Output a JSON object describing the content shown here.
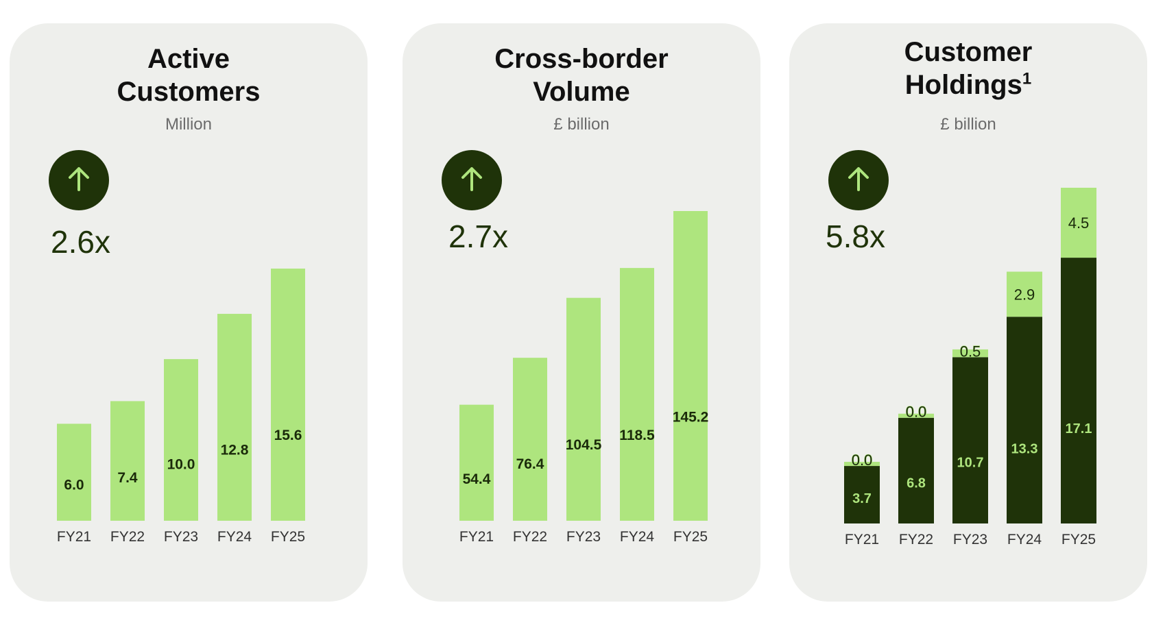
{
  "colors": {
    "card_bg": "#eeefec",
    "light_green": "#aee57e",
    "dark_green": "#1f3309",
    "arrow_green": "#aee57e",
    "title": "#111111",
    "unit": "#6b6b6b"
  },
  "icons": {
    "growth": "arrow-up-icon"
  },
  "cards": [
    {
      "title_line1": "Active",
      "title_line2": "Customers",
      "title_sup": "",
      "unit": "Million",
      "growth": "2.6x"
    },
    {
      "title_line1": "Cross-border",
      "title_line2": "Volume",
      "title_sup": "",
      "unit": "£ billion",
      "growth": "2.7x"
    },
    {
      "title_line1": "Customer",
      "title_line2": "Holdings",
      "title_sup": "1",
      "unit": "£ billion",
      "growth": "5.8x"
    }
  ],
  "chart_data": [
    {
      "type": "bar",
      "title": "Active Customers",
      "ylabel": "Million",
      "categories": [
        "FY21",
        "FY22",
        "FY23",
        "FY24",
        "FY25"
      ],
      "values": [
        6.0,
        7.4,
        10.0,
        12.8,
        15.6
      ],
      "labels": [
        "6.0",
        "7.4",
        "10.0",
        "12.8",
        "15.6"
      ],
      "ylim": [
        0,
        19.5
      ],
      "grid": false,
      "legend": "none"
    },
    {
      "type": "bar",
      "title": "Cross-border Volume",
      "ylabel": "£ billion",
      "categories": [
        "FY21",
        "FY22",
        "FY23",
        "FY24",
        "FY25"
      ],
      "values": [
        54.4,
        76.4,
        104.5,
        118.5,
        145.2
      ],
      "labels": [
        "54.4",
        "76.4",
        "104.5",
        "118.5",
        "145.2"
      ],
      "ylim": [
        0,
        145.2
      ],
      "grid": false,
      "legend": "none"
    },
    {
      "type": "bar",
      "stacked": true,
      "title": "Customer Holdings",
      "ylabel": "£ billion",
      "categories": [
        "FY21",
        "FY22",
        "FY23",
        "FY24",
        "FY25"
      ],
      "series": [
        {
          "values": [
            3.7,
            6.8,
            10.7,
            13.3,
            17.1
          ],
          "labels": [
            "3.7",
            "6.8",
            "10.7",
            "13.3",
            "17.1"
          ]
        },
        {
          "values": [
            0.0,
            0.0,
            0.5,
            2.9,
            4.5
          ],
          "labels": [
            "0.0",
            "0.0",
            "0.5",
            "2.9",
            "4.5"
          ]
        }
      ],
      "ylim": [
        0,
        21.6
      ],
      "grid": false,
      "legend": "none"
    }
  ]
}
